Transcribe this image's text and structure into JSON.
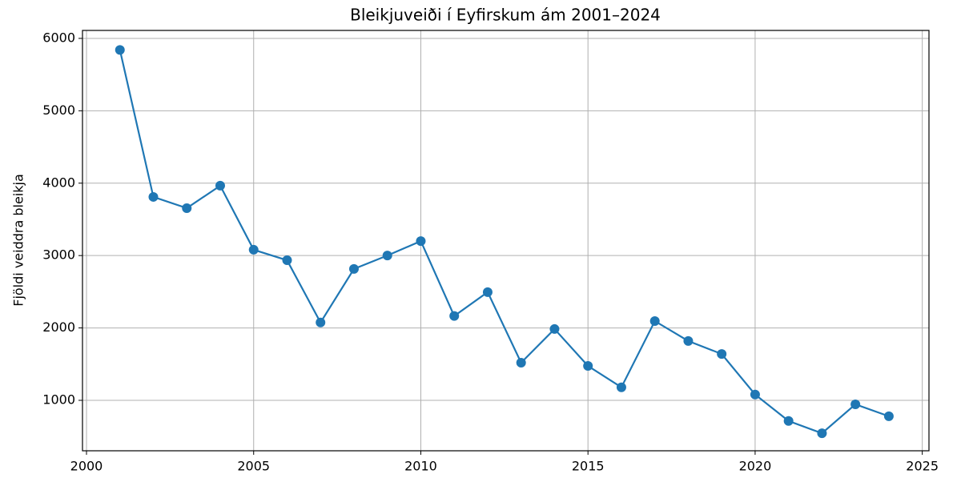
{
  "chart_data": {
    "type": "line",
    "title": "Bleikjuveiði í Eyfirskum ám 2001–2024",
    "y_label": "Fjöldi veiddra bleikja",
    "x": [
      2001,
      2002,
      2003,
      2004,
      2005,
      2006,
      2007,
      2008,
      2009,
      2010,
      2011,
      2012,
      2013,
      2014,
      2015,
      2016,
      2017,
      2018,
      2019,
      2020,
      2021,
      2022,
      2023,
      2024
    ],
    "series": [
      {
        "color": "#1f77b4",
        "values": [
          5840,
          3810,
          3655,
          3965,
          3080,
          2935,
          2075,
          2815,
          3000,
          3200,
          2165,
          2495,
          1520,
          1985,
          1475,
          1180,
          2095,
          1820,
          1640,
          1080,
          715,
          545,
          945,
          780
        ]
      }
    ],
    "xlim": [
      1999.88,
      2025.2
    ],
    "xticks": [
      2000,
      2005,
      2010,
      2015,
      2020,
      2025
    ],
    "ylim": [
      303,
      6110
    ],
    "yticks": [
      1000,
      2000,
      3000,
      4000,
      5000,
      6000
    ],
    "grid": true
  }
}
